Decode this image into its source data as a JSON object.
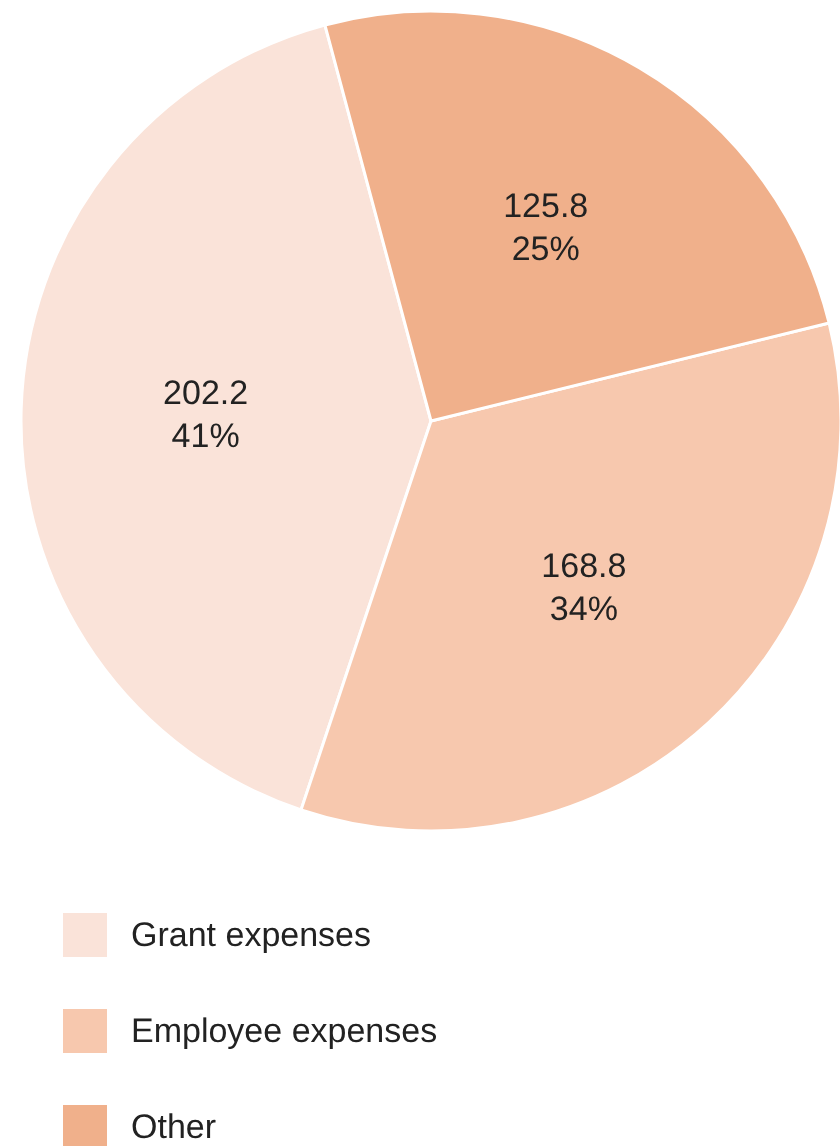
{
  "chart_data": {
    "type": "pie",
    "categories": [
      "Grant expenses",
      "Employee expenses",
      "Other"
    ],
    "values": [
      202.2,
      168.8,
      125.8
    ],
    "colors": [
      "#fae3d9",
      "#f7c8ae",
      "#f0b08b"
    ],
    "value_labels": [
      "202.2\n41%",
      "168.8\n34%",
      "125.8\n25%"
    ],
    "legend": "bottom"
  }
}
